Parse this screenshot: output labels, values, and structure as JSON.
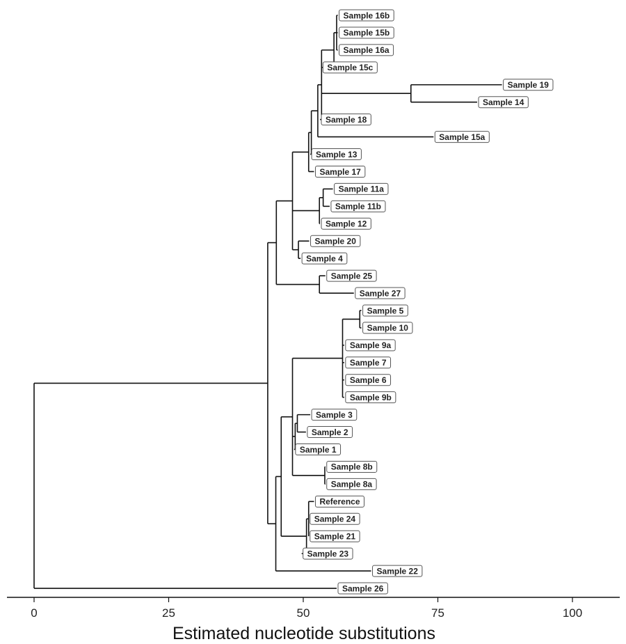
{
  "chart_data": {
    "type": "dendrogram",
    "xlabel": "Estimated nucleotide substitutions",
    "xlim": [
      0,
      100
    ],
    "xticks": [
      0,
      25,
      50,
      75,
      100
    ],
    "tips": [
      {
        "label": "Sample 16b",
        "x": 56.4
      },
      {
        "label": "Sample 15b",
        "x": 56.4
      },
      {
        "label": "Sample 16a",
        "x": 56.4
      },
      {
        "label": "Sample 15c",
        "x": 53.4
      },
      {
        "label": "Sample 19",
        "x": 86.9
      },
      {
        "label": "Sample 14",
        "x": 82.3
      },
      {
        "label": "Sample 18",
        "x": 53.1
      },
      {
        "label": "Sample 15a",
        "x": 74.2
      },
      {
        "label": "Sample 13",
        "x": 51.3
      },
      {
        "label": "Sample 17",
        "x": 52.0
      },
      {
        "label": "Sample 11a",
        "x": 55.5
      },
      {
        "label": "Sample 11b",
        "x": 54.9
      },
      {
        "label": "Sample 12",
        "x": 53.1
      },
      {
        "label": "Sample 20",
        "x": 51.1
      },
      {
        "label": "Sample 4",
        "x": 49.5
      },
      {
        "label": "Sample 25",
        "x": 54.1
      },
      {
        "label": "Sample 27",
        "x": 59.4
      },
      {
        "label": "Sample 5",
        "x": 60.8
      },
      {
        "label": "Sample 10",
        "x": 60.8
      },
      {
        "label": "Sample 9a",
        "x": 57.6
      },
      {
        "label": "Sample 7",
        "x": 57.6
      },
      {
        "label": "Sample 6",
        "x": 57.6
      },
      {
        "label": "Sample 9b",
        "x": 57.6
      },
      {
        "label": "Sample 3",
        "x": 51.3
      },
      {
        "label": "Sample 2",
        "x": 50.5
      },
      {
        "label": "Sample 1",
        "x": 48.3
      },
      {
        "label": "Sample 8b",
        "x": 54.1
      },
      {
        "label": "Sample 8a",
        "x": 54.1
      },
      {
        "label": "Reference",
        "x": 52.0
      },
      {
        "label": "Sample 24",
        "x": 51.0
      },
      {
        "label": "Sample 21",
        "x": 51.0
      },
      {
        "label": "Sample 23",
        "x": 49.7
      },
      {
        "label": "Sample 22",
        "x": 62.6
      },
      {
        "label": "Sample 26",
        "x": 56.2
      }
    ],
    "tree": {
      "x": 0,
      "children": [
        {
          "x": 43.4,
          "children": [
            {
              "x": 45.0,
              "children": [
                {
                  "x": 48.0,
                  "children": [
                    {
                      "x": 51.0,
                      "children": [
                        {
                          "x": 51.5,
                          "children": [
                            {
                              "x": 52.7,
                              "children": [
                                {
                                  "x": 53.4,
                                  "children": [
                                    {
                                      "x": 55.7,
                                      "children": [
                                        {
                                          "x": 56.2,
                                          "children": [
                                            {
                                              "tip": 0
                                            },
                                            {
                                              "tip": 1
                                            },
                                            {
                                              "tip": 2
                                            }
                                          ]
                                        },
                                        {
                                          "tip": 3
                                        }
                                      ]
                                    },
                                    {
                                      "x": 70.0,
                                      "children": [
                                        {
                                          "tip": 4
                                        },
                                        {
                                          "tip": 5
                                        }
                                      ]
                                    },
                                    {
                                      "tip": 6
                                    }
                                  ]
                                },
                                {
                                  "tip": 7
                                }
                              ]
                            },
                            {
                              "tip": 8
                            }
                          ]
                        },
                        {
                          "tip": 9
                        }
                      ]
                    },
                    {
                      "x": 53.0,
                      "children": [
                        {
                          "x": 53.7,
                          "children": [
                            {
                              "tip": 10
                            },
                            {
                              "tip": 11
                            }
                          ]
                        },
                        {
                          "tip": 12
                        }
                      ]
                    },
                    {
                      "x": 49.1,
                      "children": [
                        {
                          "tip": 13
                        },
                        {
                          "tip": 14
                        }
                      ]
                    }
                  ]
                },
                {
                  "x": 53.0,
                  "children": [
                    {
                      "tip": 15
                    },
                    {
                      "tip": 16
                    }
                  ]
                }
              ]
            },
            {
              "x": 44.9,
              "children": [
                {
                  "x": 45.9,
                  "children": [
                    {
                      "x": 47.6,
                      "children": [
                        {
                          "x": 48.0,
                          "children": [
                            {
                              "x": 57.3,
                              "children": [
                                {
                                  "x": 60.5,
                                  "children": [
                                    {
                                      "tip": 17
                                    },
                                    {
                                      "tip": 18
                                    }
                                  ]
                                },
                                {
                                  "tip": 19
                                },
                                {
                                  "tip": 20
                                },
                                {
                                  "tip": 21
                                },
                                {
                                  "tip": 22
                                }
                              ]
                            },
                            {
                              "x": 48.5,
                              "children": [
                                {
                                  "x": 48.9,
                                  "children": [
                                    {
                                      "tip": 23
                                    },
                                    {
                                      "tip": 24
                                    }
                                  ]
                                },
                                {
                                  "tip": 25
                                }
                              ]
                            },
                            {
                              "x": 54.0,
                              "children": [
                                {
                                  "tip": 26
                                },
                                {
                                  "tip": 27
                                }
                              ]
                            }
                          ]
                        }
                      ]
                    },
                    {
                      "x": 50.6,
                      "children": [
                        {
                          "x": 51.0,
                          "children": [
                            {
                              "tip": 28
                            },
                            {
                              "tip": 29
                            },
                            {
                              "tip": 30
                            }
                          ]
                        },
                        {
                          "tip": 31
                        }
                      ]
                    }
                  ]
                },
                {
                  "tip": 32
                }
              ]
            }
          ]
        },
        {
          "tip": 33
        }
      ]
    }
  }
}
